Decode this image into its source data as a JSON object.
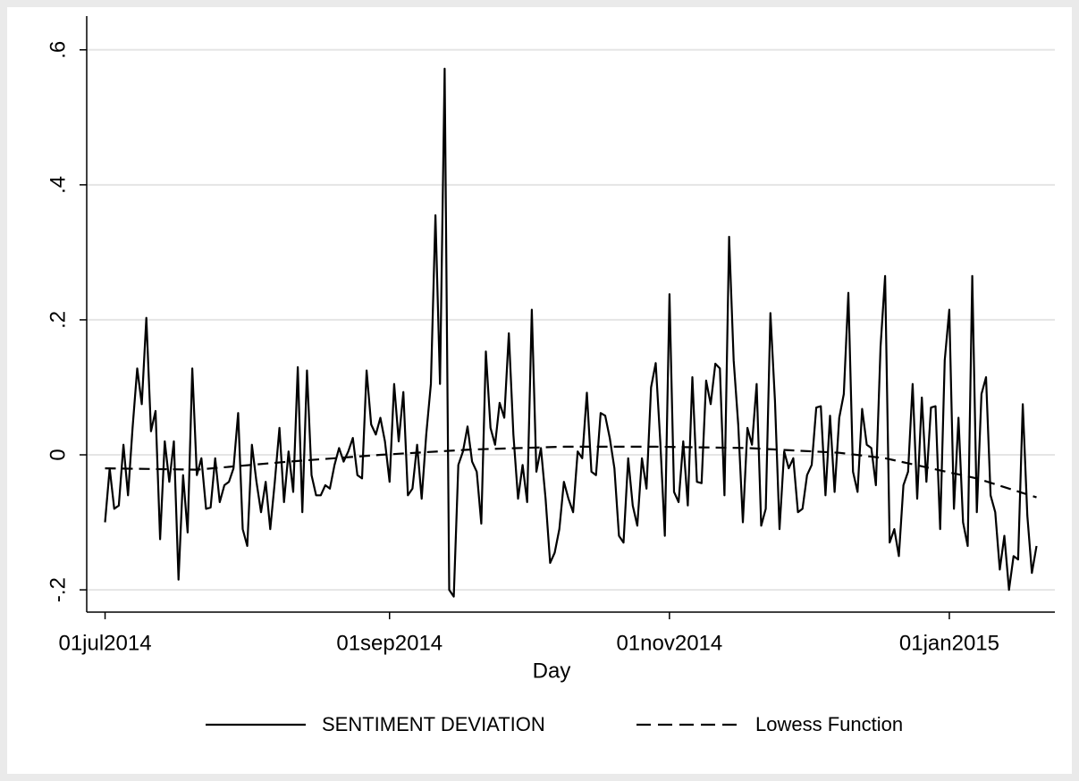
{
  "chart_data": {
    "type": "line",
    "x_label": "Day",
    "x": [
      "2014-07-01",
      "2014-07-02",
      "2014-07-03",
      "2014-07-04",
      "2014-07-05",
      "2014-07-06",
      "2014-07-07",
      "2014-07-08",
      "2014-07-09",
      "2014-07-10",
      "2014-07-11",
      "2014-07-12",
      "2014-07-13",
      "2014-07-14",
      "2014-07-15",
      "2014-07-16",
      "2014-07-17",
      "2014-07-18",
      "2014-07-19",
      "2014-07-20",
      "2014-07-21",
      "2014-07-22",
      "2014-07-23",
      "2014-07-24",
      "2014-07-25",
      "2014-07-26",
      "2014-07-27",
      "2014-07-28",
      "2014-07-29",
      "2014-07-30",
      "2014-07-31",
      "2014-08-01",
      "2014-08-02",
      "2014-08-03",
      "2014-08-04",
      "2014-08-05",
      "2014-08-06",
      "2014-08-07",
      "2014-08-08",
      "2014-08-09",
      "2014-08-10",
      "2014-08-11",
      "2014-08-12",
      "2014-08-13",
      "2014-08-14",
      "2014-08-15",
      "2014-08-16",
      "2014-08-17",
      "2014-08-18",
      "2014-08-19",
      "2014-08-20",
      "2014-08-21",
      "2014-08-22",
      "2014-08-23",
      "2014-08-24",
      "2014-08-25",
      "2014-08-26",
      "2014-08-27",
      "2014-08-28",
      "2014-08-29",
      "2014-08-30",
      "2014-08-31",
      "2014-09-01",
      "2014-09-02",
      "2014-09-03",
      "2014-09-04",
      "2014-09-05",
      "2014-09-06",
      "2014-09-07",
      "2014-09-08",
      "2014-09-09",
      "2014-09-10",
      "2014-09-11",
      "2014-09-12",
      "2014-09-13",
      "2014-09-14",
      "2014-09-15",
      "2014-09-16",
      "2014-09-17",
      "2014-09-18",
      "2014-09-19",
      "2014-09-20",
      "2014-09-21",
      "2014-09-22",
      "2014-09-23",
      "2014-09-24",
      "2014-09-25",
      "2014-09-26",
      "2014-09-27",
      "2014-09-28",
      "2014-09-29",
      "2014-09-30",
      "2014-10-01",
      "2014-10-02",
      "2014-10-03",
      "2014-10-04",
      "2014-10-05",
      "2014-10-06",
      "2014-10-07",
      "2014-10-08",
      "2014-10-09",
      "2014-10-10",
      "2014-10-11",
      "2014-10-12",
      "2014-10-13",
      "2014-10-14",
      "2014-10-15",
      "2014-10-16",
      "2014-10-17",
      "2014-10-18",
      "2014-10-19",
      "2014-10-20",
      "2014-10-21",
      "2014-10-22",
      "2014-10-23",
      "2014-10-24",
      "2014-10-25",
      "2014-10-26",
      "2014-10-27",
      "2014-10-28",
      "2014-10-29",
      "2014-10-30",
      "2014-10-31",
      "2014-11-01",
      "2014-11-02",
      "2014-11-03",
      "2014-11-04",
      "2014-11-05",
      "2014-11-06",
      "2014-11-07",
      "2014-11-08",
      "2014-11-09",
      "2014-11-10",
      "2014-11-11",
      "2014-11-12",
      "2014-11-13",
      "2014-11-14",
      "2014-11-15",
      "2014-11-16",
      "2014-11-17",
      "2014-11-18",
      "2014-11-19",
      "2014-11-20",
      "2014-11-21",
      "2014-11-22",
      "2014-11-23",
      "2014-11-24",
      "2014-11-25",
      "2014-11-26",
      "2014-11-27",
      "2014-11-28",
      "2014-11-29",
      "2014-11-30",
      "2014-12-01",
      "2014-12-02",
      "2014-12-03",
      "2014-12-04",
      "2014-12-05",
      "2014-12-06",
      "2014-12-07",
      "2014-12-08",
      "2014-12-09",
      "2014-12-10",
      "2014-12-11",
      "2014-12-12",
      "2014-12-13",
      "2014-12-14",
      "2014-12-15",
      "2014-12-16",
      "2014-12-17",
      "2014-12-18",
      "2014-12-19",
      "2014-12-20",
      "2014-12-21",
      "2014-12-22",
      "2014-12-23",
      "2014-12-24",
      "2014-12-25",
      "2014-12-26",
      "2014-12-27",
      "2014-12-28",
      "2014-12-29",
      "2014-12-30",
      "2014-12-31",
      "2015-01-01",
      "2015-01-02",
      "2015-01-03",
      "2015-01-04",
      "2015-01-05",
      "2015-01-06",
      "2015-01-07",
      "2015-01-08",
      "2015-01-09",
      "2015-01-10",
      "2015-01-11",
      "2015-01-12",
      "2015-01-13",
      "2015-01-14",
      "2015-01-15",
      "2015-01-16",
      "2015-01-17",
      "2015-01-18",
      "2015-01-19",
      "2015-01-20"
    ],
    "series": [
      {
        "name": "SENTIMENT DEVIATION",
        "color": "#000000",
        "line_style": "solid",
        "values": [
          -0.1,
          -0.02,
          -0.08,
          -0.075,
          0.015,
          -0.06,
          0.04,
          0.128,
          0.075,
          0.203,
          0.035,
          0.065,
          -0.125,
          0.02,
          -0.04,
          0.02,
          -0.185,
          -0.03,
          -0.115,
          0.128,
          -0.03,
          -0.005,
          -0.08,
          -0.078,
          -0.005,
          -0.07,
          -0.045,
          -0.04,
          -0.02,
          0.062,
          -0.11,
          -0.135,
          0.015,
          -0.04,
          -0.085,
          -0.04,
          -0.11,
          -0.04,
          0.04,
          -0.07,
          0.005,
          -0.055,
          0.13,
          -0.085,
          0.125,
          -0.03,
          -0.06,
          -0.06,
          -0.045,
          -0.05,
          -0.015,
          0.01,
          -0.01,
          0.005,
          0.025,
          -0.03,
          -0.035,
          0.125,
          0.045,
          0.03,
          0.055,
          0.02,
          -0.04,
          0.105,
          0.02,
          0.093,
          -0.06,
          -0.05,
          0.015,
          -0.065,
          0.03,
          0.105,
          0.355,
          0.105,
          0.572,
          -0.2,
          -0.21,
          -0.015,
          0.005,
          0.042,
          -0.01,
          -0.025,
          -0.102,
          0.153,
          0.04,
          0.015,
          0.077,
          0.055,
          0.18,
          0.03,
          -0.065,
          -0.015,
          -0.07,
          0.215,
          -0.025,
          0.01,
          -0.065,
          -0.16,
          -0.145,
          -0.11,
          -0.04,
          -0.065,
          -0.085,
          0.005,
          -0.005,
          0.092,
          -0.025,
          -0.03,
          0.062,
          0.058,
          0.025,
          -0.02,
          -0.12,
          -0.13,
          -0.005,
          -0.075,
          -0.105,
          -0.005,
          -0.05,
          0.1,
          0.136,
          0.02,
          -0.12,
          0.238,
          -0.055,
          -0.07,
          0.02,
          -0.075,
          0.115,
          -0.04,
          -0.042,
          0.11,
          0.075,
          0.135,
          0.128,
          -0.06,
          0.323,
          0.14,
          0.045,
          -0.1,
          0.04,
          0.015,
          0.105,
          -0.105,
          -0.08,
          0.21,
          0.08,
          -0.11,
          0.005,
          -0.02,
          -0.005,
          -0.085,
          -0.08,
          -0.03,
          -0.015,
          0.07,
          0.072,
          -0.06,
          0.058,
          -0.055,
          0.055,
          0.09,
          0.24,
          -0.025,
          -0.055,
          0.068,
          0.015,
          0.01,
          -0.045,
          0.16,
          0.265,
          -0.13,
          -0.11,
          -0.15,
          -0.045,
          -0.025,
          0.105,
          -0.065,
          0.085,
          -0.04,
          0.07,
          0.072,
          -0.11,
          0.14,
          0.215,
          -0.08,
          0.055,
          -0.1,
          -0.135,
          0.265,
          -0.085,
          0.09,
          0.115,
          -0.06,
          -0.085,
          -0.17,
          -0.12,
          -0.2,
          -0.15,
          -0.155,
          0.075,
          -0.09,
          -0.175,
          -0.135
        ]
      },
      {
        "name": "Lowess Function",
        "color": "#000000",
        "line_style": "dashed",
        "x": [
          "2014-07-01",
          "2014-07-21",
          "2014-08-10",
          "2014-08-30",
          "2014-09-19",
          "2014-10-09",
          "2014-10-29",
          "2014-11-18",
          "2014-12-08",
          "2014-12-18",
          "2014-12-28",
          "2015-01-07",
          "2015-01-20"
        ],
        "values": [
          -0.02,
          -0.022,
          -0.01,
          0.0,
          0.008,
          0.012,
          0.012,
          0.01,
          0.003,
          -0.005,
          -0.02,
          -0.035,
          -0.063
        ]
      }
    ],
    "xlim": [
      "2014-06-27",
      "2015-01-24"
    ],
    "xticks": [
      {
        "value": "2014-07-01",
        "label": "01jul2014"
      },
      {
        "value": "2014-09-01",
        "label": "01sep2014"
      },
      {
        "value": "2014-11-01",
        "label": "01nov2014"
      },
      {
        "value": "2015-01-01",
        "label": "01jan2015"
      }
    ],
    "ylim": [
      -0.233,
      0.65
    ],
    "yticks": [
      {
        "value": -0.2,
        "label": "-.2"
      },
      0,
      {
        "value": 0.2,
        "label": ".2"
      },
      {
        "value": 0.4,
        "label": ".4"
      },
      {
        "value": 0.6,
        "label": ".6"
      }
    ],
    "grid": true,
    "legend": "bottom"
  }
}
